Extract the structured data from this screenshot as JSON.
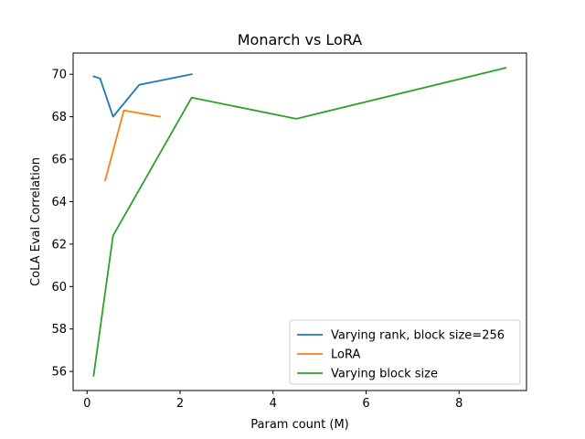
{
  "chart_data": {
    "type": "line",
    "title": "Monarch vs LoRA",
    "xlabel": "Param count (M)",
    "ylabel": "CoLA Eval Correlation",
    "xlim": [
      -0.3,
      9.45
    ],
    "ylim": [
      55.1,
      71.0
    ],
    "xticks": [
      0,
      2,
      4,
      6,
      8
    ],
    "yticks": [
      56,
      58,
      60,
      62,
      64,
      66,
      68,
      70
    ],
    "grid": false,
    "legend_position": "lower-right",
    "series": [
      {
        "name": "Varying rank, block size=256",
        "color": "#1f77b4",
        "x": [
          0.14,
          0.28,
          0.56,
          1.12,
          2.25
        ],
        "y": [
          69.9,
          69.8,
          68.0,
          69.5,
          70.0
        ]
      },
      {
        "name": "LoRA",
        "color": "#ff7f0e",
        "x": [
          0.39,
          0.79,
          1.57
        ],
        "y": [
          65.0,
          68.3,
          68.0
        ]
      },
      {
        "name": "Varying block size",
        "color": "#2ca02c",
        "x": [
          0.14,
          0.56,
          2.25,
          4.5,
          9.0
        ],
        "y": [
          55.8,
          62.4,
          68.9,
          67.9,
          70.3
        ]
      }
    ]
  }
}
